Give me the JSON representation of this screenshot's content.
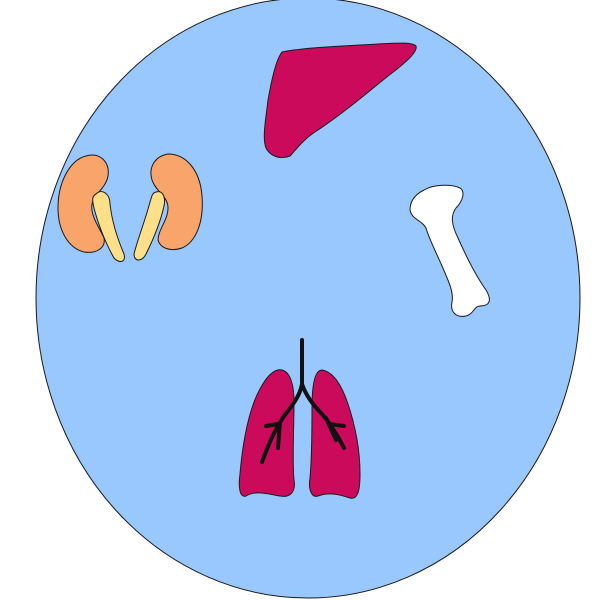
{
  "diagram": {
    "organs": [
      {
        "name": "liver",
        "icon": "liver-icon"
      },
      {
        "name": "kidneys",
        "icon": "kidneys-icon"
      },
      {
        "name": "bone",
        "icon": "bone-icon"
      },
      {
        "name": "lungs",
        "icon": "lungs-icon"
      }
    ],
    "colors": {
      "body_fill": "#99C8FF",
      "outline": "#1a1a1a",
      "liver": "#CC0A5B",
      "kidney": "#F9A46B",
      "ureter": "#FFE08A",
      "bone": "#FFFFFF",
      "lung": "#CC0A5B",
      "airway": "#111111"
    }
  }
}
